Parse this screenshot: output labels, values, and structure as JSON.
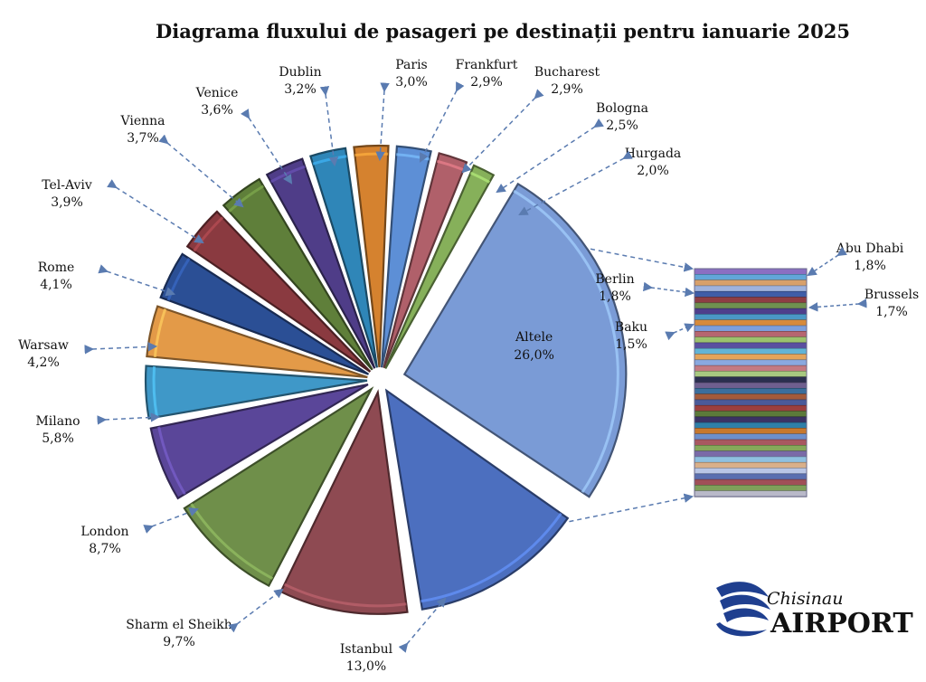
{
  "chart_data": {
    "type": "pie",
    "title": "Diagrama fluxului de pasageri pe destinații pentru ianuarie 2025",
    "slices": [
      {
        "label": "Altele",
        "value_label": "26,0%",
        "value": 26.0,
        "color": "#7a9bd6"
      },
      {
        "label": "Istanbul",
        "value_label": "13,0%",
        "value": 13.0,
        "color": "#4c6fbf"
      },
      {
        "label": "Sharm el Sheikh",
        "value_label": "9,7%",
        "value": 9.7,
        "color": "#8e4a52"
      },
      {
        "label": "London",
        "value_label": "8,7%",
        "value": 8.7,
        "color": "#6f8f4a"
      },
      {
        "label": "Milano",
        "value_label": "5,8%",
        "value": 5.8,
        "color": "#5a4699"
      },
      {
        "label": "Warsaw",
        "value_label": "4,2%",
        "value": 4.2,
        "color": "#3f98c8"
      },
      {
        "label": "Rome",
        "value_label": "4,1%",
        "value": 4.1,
        "color": "#e39a48"
      },
      {
        "label": "Tel-Aviv",
        "value_label": "3,9%",
        "value": 3.9,
        "color": "#2b4f95"
      },
      {
        "label": "Vienna",
        "value_label": "3,7%",
        "value": 3.7,
        "color": "#8a3a40"
      },
      {
        "label": "Venice",
        "value_label": "3,6%",
        "value": 3.6,
        "color": "#5f7f3a"
      },
      {
        "label": "Dublin",
        "value_label": "3,2%",
        "value": 3.2,
        "color": "#4f3d88"
      },
      {
        "label": "Paris",
        "value_label": "3,0%",
        "value": 3.0,
        "color": "#2f86b8"
      },
      {
        "label": "Frankfurt",
        "value_label": "2,9%",
        "value": 2.9,
        "color": "#d5822f"
      },
      {
        "label": "Bucharest",
        "value_label": "2,9%",
        "value": 2.9,
        "color": "#5d8fd6"
      },
      {
        "label": "Bologna",
        "value_label": "2,5%",
        "value": 2.5,
        "color": "#b0606a"
      },
      {
        "label": "Hurgada",
        "value_label": "2,0%",
        "value": 2.0,
        "color": "#86b05a"
      }
    ],
    "breakdown": {
      "of": "Altele",
      "labeled": [
        {
          "label": "Abu Dhabi",
          "value_label": "1,8%",
          "value": 1.8
        },
        {
          "label": "Berlin",
          "value_label": "1,8%",
          "value": 1.8
        },
        {
          "label": "Brussels",
          "value_label": "1,7%",
          "value": 1.7
        },
        {
          "label": "Baku",
          "value_label": "1,5%",
          "value": 1.5
        }
      ],
      "band_colors": [
        "#8b6fc2",
        "#62a6d9",
        "#d8a06a",
        "#9fb2dc",
        "#3f5da8",
        "#8e3d44",
        "#6f9150",
        "#4e3f8c",
        "#4a97c6",
        "#d78a3a",
        "#7d9fda",
        "#b66670",
        "#9cc26d",
        "#5a4fa0",
        "#62b4d6",
        "#e3a45b",
        "#8aa9e0",
        "#c47a82",
        "#a8c980",
        "#2b2f4f",
        "#6f5f8f",
        "#3b6e9c",
        "#a35a3a",
        "#4a5a9a",
        "#9b3f3f",
        "#5c7a3a",
        "#3b3264",
        "#2f7fa8",
        "#c7782e",
        "#6d8fcc",
        "#a85860",
        "#86a85a",
        "#7a6aa8",
        "#8fc0e0",
        "#d9b08a",
        "#b9c6e6",
        "#5a6fb0",
        "#a05058",
        "#7fa05a",
        "#b9b9c9"
      ]
    }
  },
  "logo": {
    "line1": "Chisinau",
    "line2": "AIRPORT",
    "color": "#1f3f8f"
  }
}
